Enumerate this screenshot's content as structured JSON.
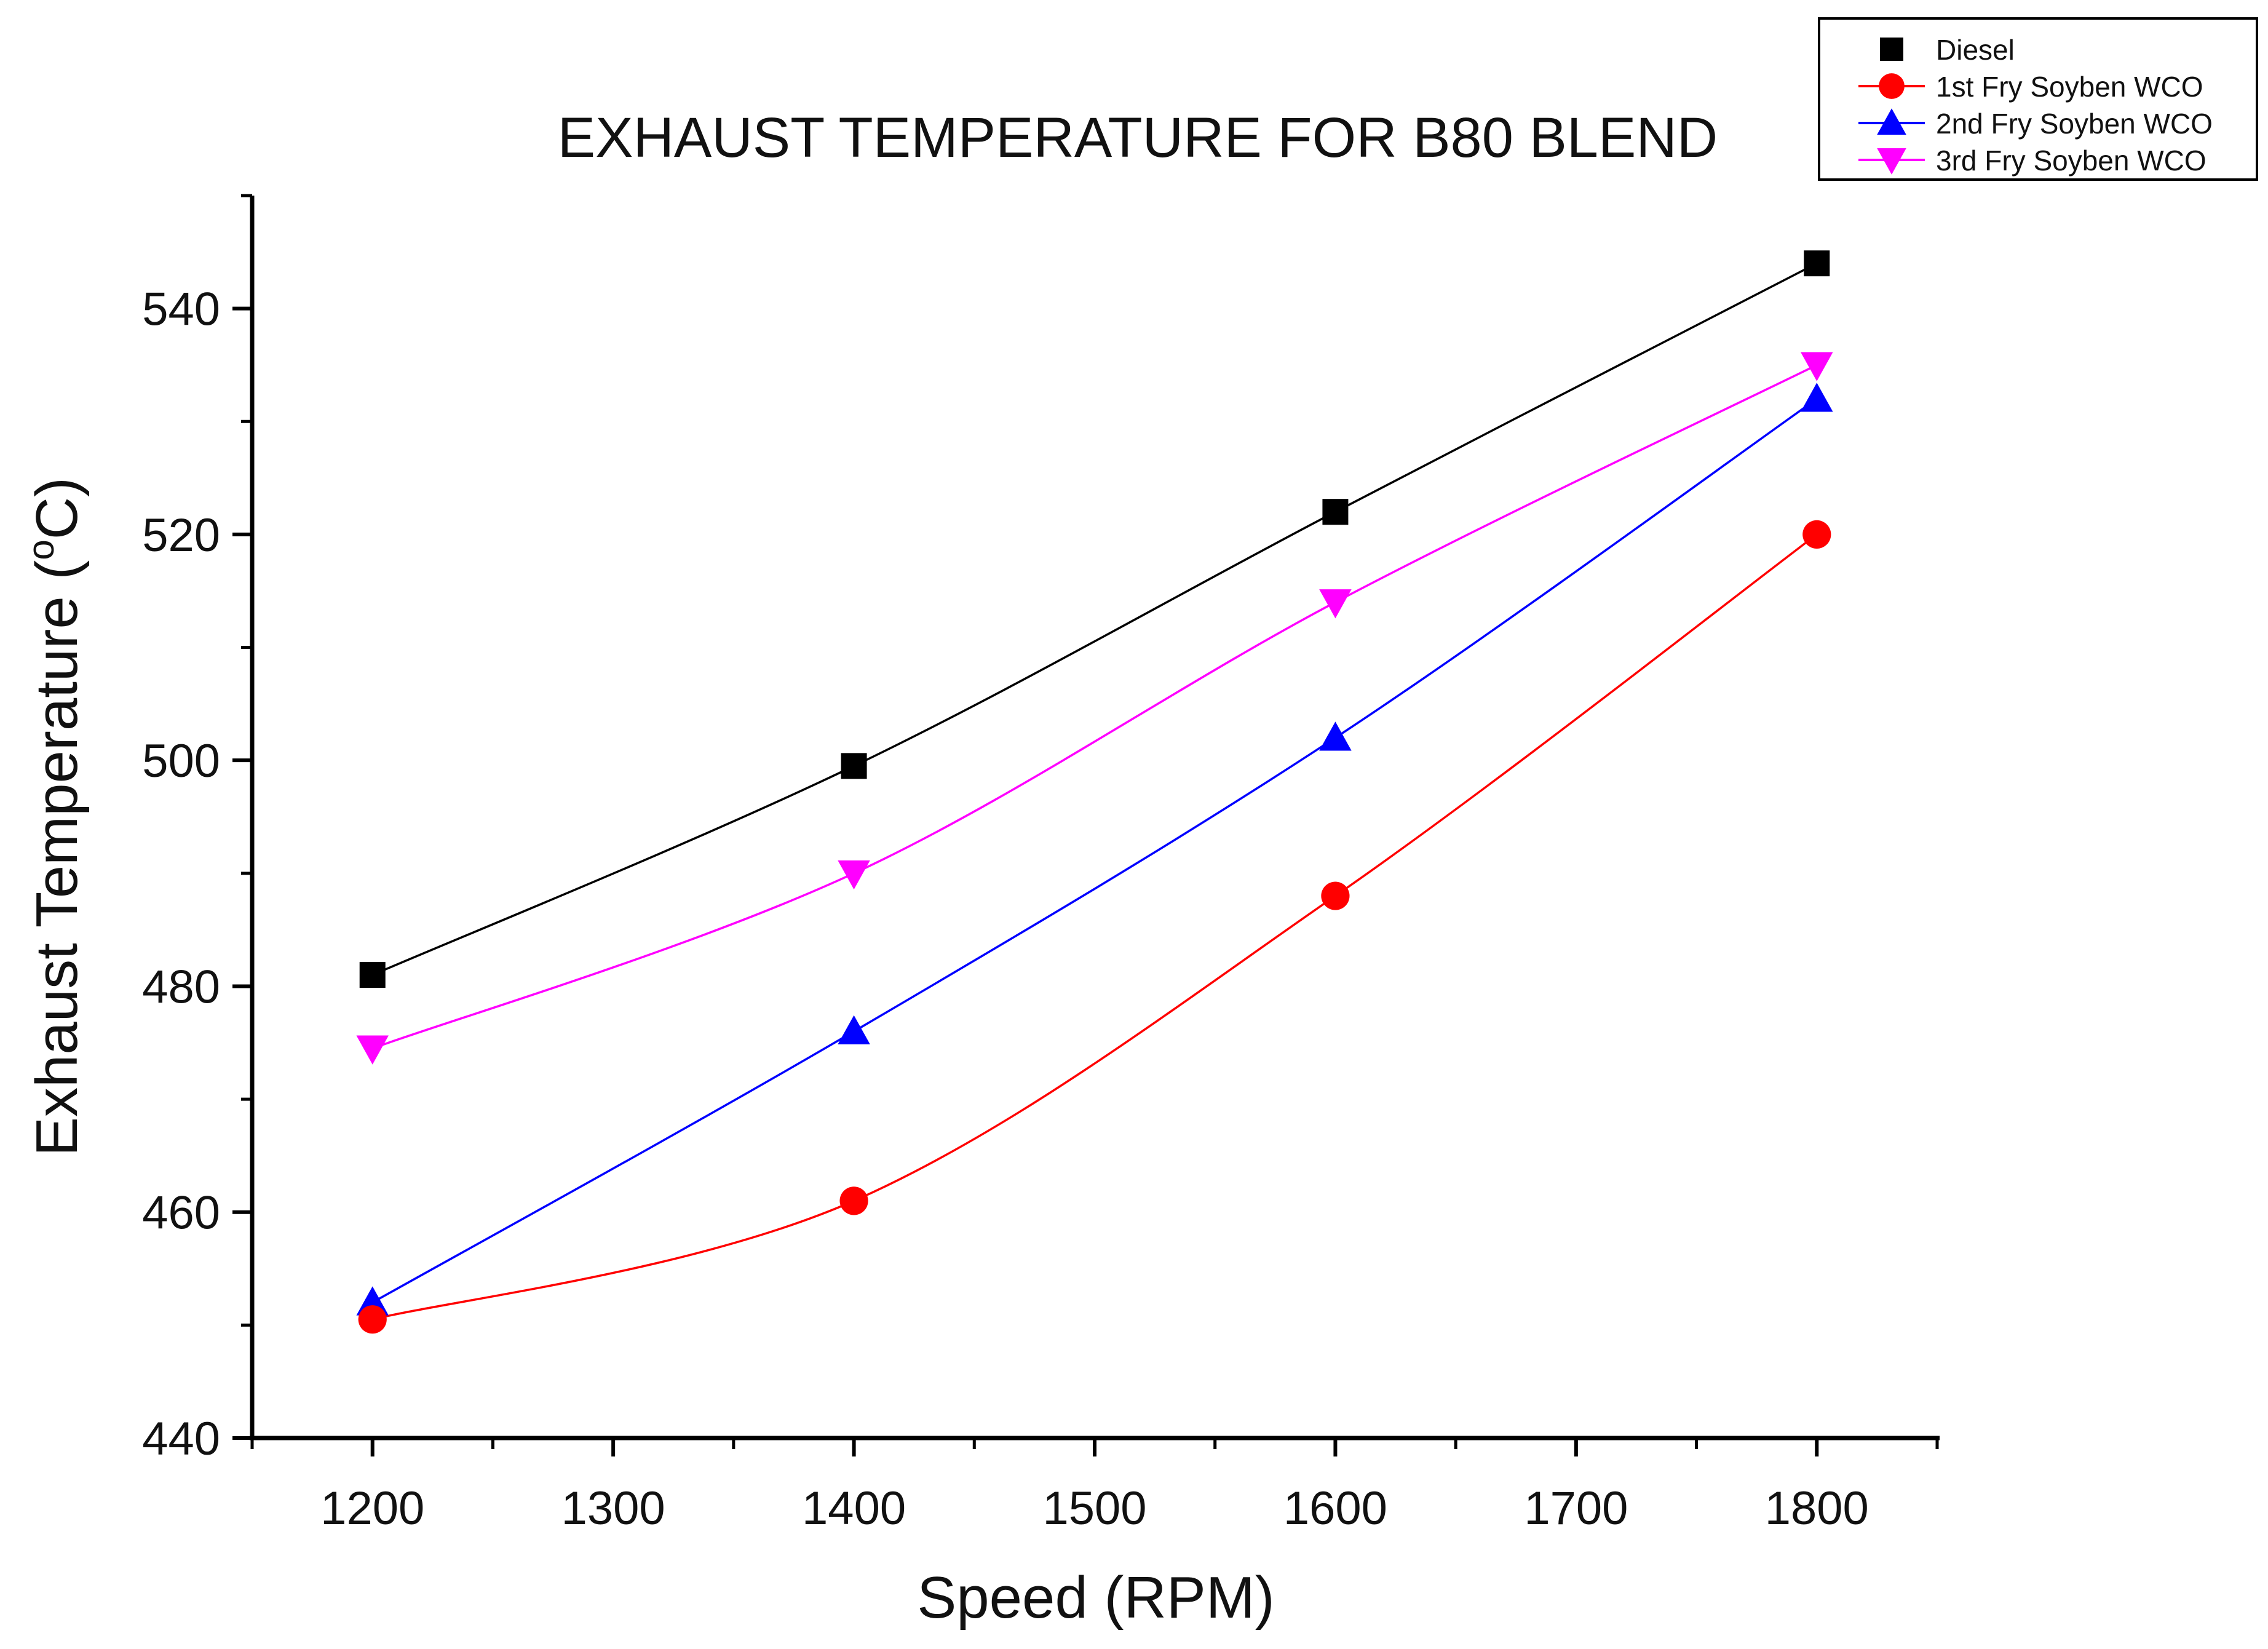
{
  "chart_data": {
    "type": "line",
    "title": "EXHAUST TEMPERATURE FOR B80 BLEND",
    "xlabel": "Speed (RPM)",
    "ylabel_main": "Exhaust Temperature (",
    "ylabel_sup": "o",
    "ylabel_unit": "C)",
    "xlim": [
      1150,
      1850
    ],
    "ylim": [
      440,
      550
    ],
    "x_ticks": [
      1200,
      1300,
      1400,
      1500,
      1600,
      1700,
      1800
    ],
    "y_ticks": [
      440,
      460,
      480,
      500,
      520,
      540
    ],
    "grid": false,
    "legend_position": "top-right",
    "series": [
      {
        "name": "Diesel",
        "color": "#000000",
        "marker": "square",
        "x": [
          1200,
          1400,
          1600,
          1800
        ],
        "values": [
          481,
          499.5,
          522,
          544
        ]
      },
      {
        "name": "1st Fry Soyben WCO",
        "color": "#ff0000",
        "marker": "circle",
        "x": [
          1200,
          1400,
          1600,
          1800
        ],
        "values": [
          450.5,
          461,
          488,
          520
        ]
      },
      {
        "name": "2nd Fry Soyben WCO",
        "color": "#0000ff",
        "marker": "triangle-up",
        "x": [
          1200,
          1400,
          1600,
          1800
        ],
        "values": [
          452,
          476,
          502,
          532
        ]
      },
      {
        "name": "3rd Fry Soyben WCO",
        "color": "#ff00ff",
        "marker": "triangle-down",
        "x": [
          1200,
          1400,
          1600,
          1800
        ],
        "values": [
          474.5,
          490,
          514,
          535
        ]
      }
    ]
  }
}
